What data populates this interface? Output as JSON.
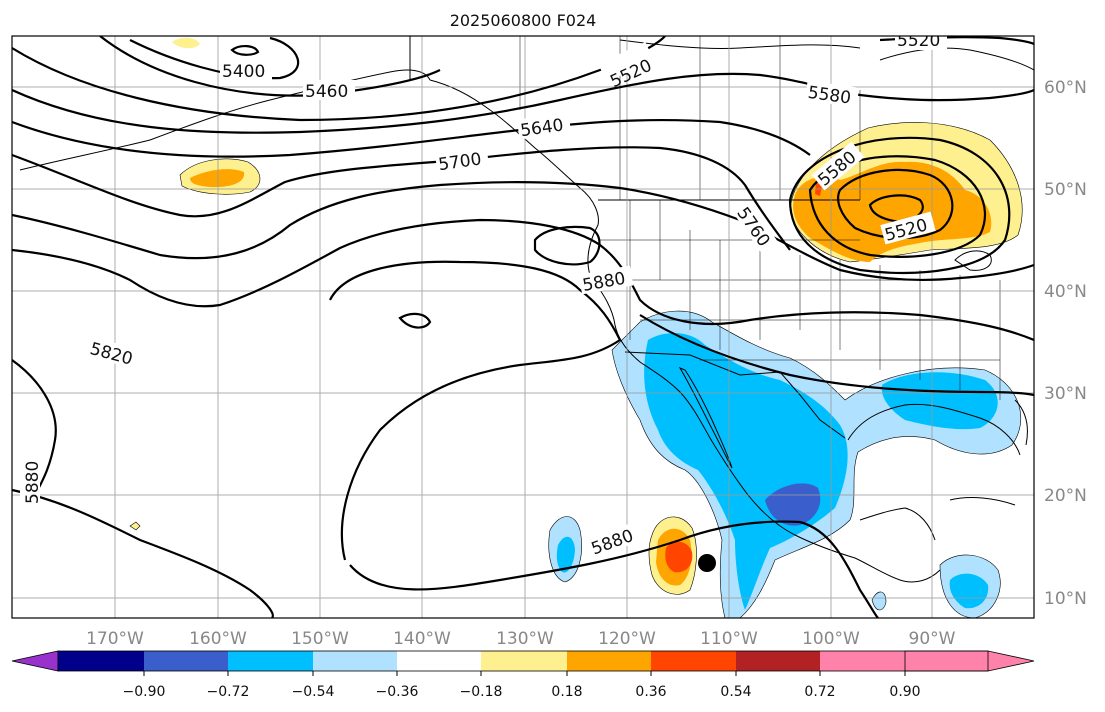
{
  "title": "2025060800 F024",
  "lon_ticks": [
    "170°W",
    "160°W",
    "150°W",
    "140°W",
    "130°W",
    "120°W",
    "110°W",
    "100°W",
    "90°W"
  ],
  "lat_ticks": [
    "60°N",
    "50°N",
    "40°N",
    "30°N",
    "20°N",
    "10°N"
  ],
  "contour_labels": [
    "5400",
    "5460",
    "5520",
    "5520",
    "5580",
    "5640",
    "5700",
    "5760",
    "5580",
    "5520",
    "5880",
    "5820",
    "5880",
    "5880"
  ],
  "colorbar": {
    "ticks": [
      "−0.90",
      "−0.72",
      "−0.54",
      "−0.36",
      "−0.18",
      "0.18",
      "0.36",
      "0.54",
      "0.72",
      "0.90"
    ],
    "colors": {
      "under": "#9932cc",
      "bins": [
        "#00008b",
        "#3a5fcd",
        "#00bfff",
        "#b0e2ff",
        "#ffffff",
        "#fff08f",
        "#ffa500",
        "#ff4500",
        "#b22222",
        "#ff82ab"
      ],
      "over": "#ff82ab"
    }
  },
  "colors": {
    "neg_light": "#b0e2ff",
    "neg_mid": "#00bfff",
    "neg_dark": "#3a5fcd",
    "pos_light": "#fff08f",
    "pos_mid": "#ffa500",
    "pos_dark": "#ff4500",
    "contour": "#000000",
    "grid": "#999999"
  }
}
